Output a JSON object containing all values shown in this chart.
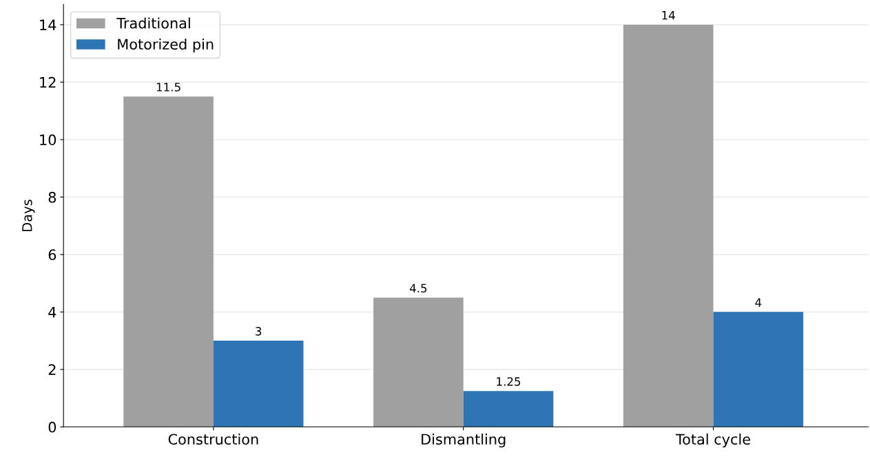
{
  "chart_data": {
    "type": "bar",
    "ylabel": "Days",
    "categories": [
      "Construction",
      "Dismantling",
      "Total cycle"
    ],
    "series": [
      {
        "name": "Traditional",
        "color": "#a0a0a0",
        "values": [
          11.5,
          4.5,
          14
        ]
      },
      {
        "name": "Motorized pin",
        "color": "#2e75b6",
        "values": [
          3,
          1.25,
          4
        ]
      }
    ],
    "ylim": [
      0,
      14.7
    ],
    "yticks": [
      0,
      2,
      4,
      6,
      8,
      10,
      12,
      14
    ],
    "grid": "y",
    "legend": "top left",
    "data_labels": true
  }
}
